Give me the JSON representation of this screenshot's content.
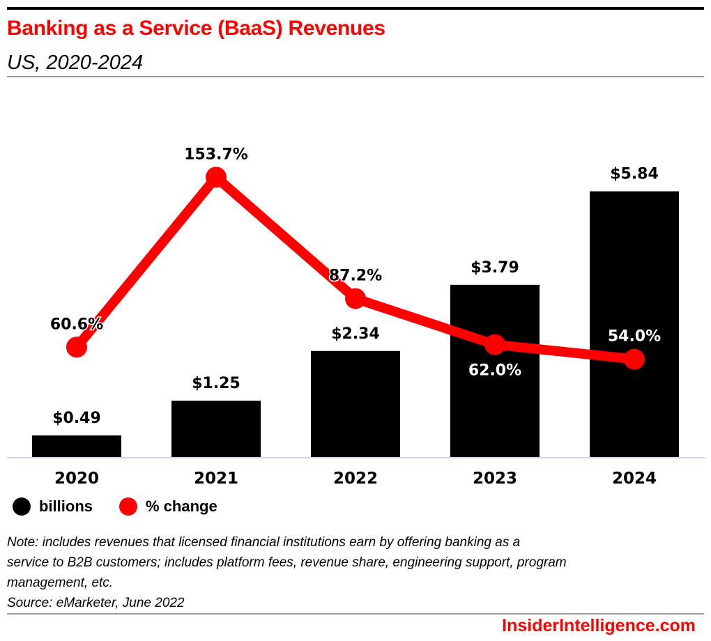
{
  "header": {
    "title": "Banking as a Service (BaaS) Revenues",
    "subtitle": "US, 2020-2024"
  },
  "legend": {
    "items": [
      {
        "label": "billions",
        "color": "#000000"
      },
      {
        "label": "% change",
        "color": "#ff0000"
      }
    ]
  },
  "notes": {
    "note_lines": [
      "Note: includes revenues that licensed financial institutions earn by offering banking as a",
      "service to B2B customers; includes platform fees, revenue share, engineering support, program",
      "management, etc."
    ],
    "source": "Source: eMarketer, June 2022"
  },
  "footer": {
    "brand": "InsiderIntelligence.com"
  },
  "colors": {
    "bar": "#000000",
    "line": "#ff0000",
    "title": "#ff0000",
    "baseline": "#cfd8e8"
  },
  "chart_data": {
    "type": "bar",
    "title": "Banking as a Service (BaaS) Revenues",
    "subtitle": "US, 2020-2024",
    "xlabel": "",
    "ylabel": "",
    "categories": [
      "2020",
      "2021",
      "2022",
      "2023",
      "2024"
    ],
    "series": [
      {
        "name": "billions",
        "type": "bar",
        "axis": "primary",
        "values": [
          0.49,
          1.25,
          2.34,
          3.79,
          5.84
        ],
        "labels": [
          "$0.49",
          "$1.25",
          "$2.34",
          "$3.79",
          "$5.84"
        ]
      },
      {
        "name": "% change",
        "type": "line",
        "axis": "secondary",
        "values": [
          60.6,
          153.7,
          87.2,
          62.0,
          54.0
        ],
        "labels": [
          "60.6%",
          "153.7%",
          "87.2%",
          "62.0%",
          "54.0%"
        ],
        "label_positions": [
          "above",
          "above",
          "above",
          "below",
          "above"
        ]
      }
    ],
    "ylim": [
      0,
      8.2
    ],
    "ylim_secondary": [
      0,
      205
    ],
    "grid": false,
    "legend": "bottom-left"
  }
}
